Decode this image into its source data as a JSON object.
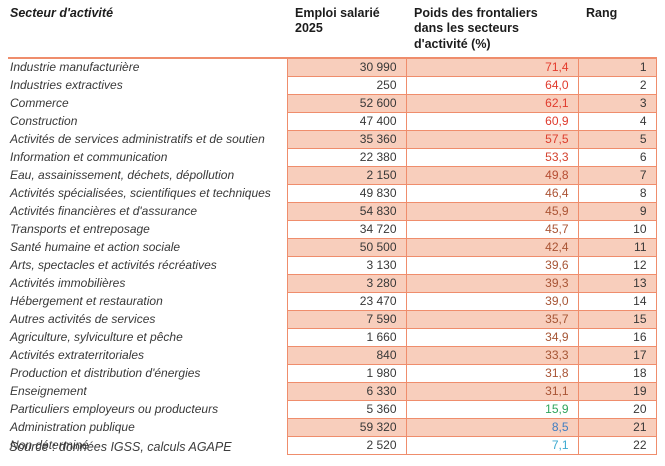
{
  "colors": {
    "cell_border": "#EF8D6C",
    "row_fill": "#F8CEBC",
    "text": "#383838",
    "weight_high": "#E0392C",
    "weight_mid": "#A75434",
    "weight_green": "#2EA45C",
    "weight_blue": "#3F7DC2",
    "weight_cyan": "#3BA9D0"
  },
  "table": {
    "headers": {
      "sector": "Secteur d'activité",
      "employment": "Emploi salarié 2025",
      "weight": "Poids des frontaliers dans les secteurs d'activité (%)",
      "rank": "Rang"
    },
    "rows": [
      {
        "sector": "Industrie manufacturière",
        "employment": "30 990",
        "weight": "71,4",
        "weight_color": "#E43B2C",
        "rank": "1"
      },
      {
        "sector": "Industries extractives",
        "employment": "250",
        "weight": "64,0",
        "weight_color": "#E03A2C",
        "rank": "2"
      },
      {
        "sector": "Commerce",
        "employment": "52 600",
        "weight": "62,1",
        "weight_color": "#E03A2C",
        "rank": "3"
      },
      {
        "sector": "Construction",
        "employment": "47 400",
        "weight": "60,9",
        "weight_color": "#DF3A2C",
        "rank": "4"
      },
      {
        "sector": "Activités de services administratifs et de soutien",
        "employment": "35 360",
        "weight": "57,5",
        "weight_color": "#DC3D2D",
        "rank": "5"
      },
      {
        "sector": "Information et communication",
        "employment": "22 380",
        "weight": "53,3",
        "weight_color": "#D4422E",
        "rank": "6"
      },
      {
        "sector": "Eau, assainissement, déchets, dépollution",
        "employment": "2 150",
        "weight": "49,8",
        "weight_color": "#B54C31",
        "rank": "7"
      },
      {
        "sector": "Activités spécialisées, scientifiques et techniques",
        "employment": "49 830",
        "weight": "46,4",
        "weight_color": "#AB5233",
        "rank": "8"
      },
      {
        "sector": "Activités financières et d'assurance",
        "employment": "54 830",
        "weight": "45,9",
        "weight_color": "#AA5333",
        "rank": "9"
      },
      {
        "sector": "Transports et entreposage",
        "employment": "34 720",
        "weight": "45,7",
        "weight_color": "#AA5333",
        "rank": "10"
      },
      {
        "sector": "Santé humaine et action sociale",
        "employment": "50 500",
        "weight": "42,4",
        "weight_color": "#A95333",
        "rank": "11"
      },
      {
        "sector": "Arts, spectacles et activités récréatives",
        "employment": "3 130",
        "weight": "39,6",
        "weight_color": "#A75434",
        "rank": "12"
      },
      {
        "sector": "Activités immobilières",
        "employment": "3 280",
        "weight": "39,3",
        "weight_color": "#A75434",
        "rank": "13"
      },
      {
        "sector": "Hébergement et restauration",
        "employment": "23 470",
        "weight": "39,0",
        "weight_color": "#A65434",
        "rank": "14"
      },
      {
        "sector": "Autres activités de services",
        "employment": "7 590",
        "weight": "35,7",
        "weight_color": "#A55534",
        "rank": "15"
      },
      {
        "sector": "Agriculture, sylviculture et pêche",
        "employment": "1 660",
        "weight": "34,9",
        "weight_color": "#A55534",
        "rank": "16"
      },
      {
        "sector": "Activités extraterritoriales",
        "employment": "840",
        "weight": "33,3",
        "weight_color": "#A55534",
        "rank": "17"
      },
      {
        "sector": "Production et distribution d'énergies",
        "employment": "1 980",
        "weight": "31,8",
        "weight_color": "#A85334",
        "rank": "18"
      },
      {
        "sector": "Enseignement",
        "employment": "6 330",
        "weight": "31,1",
        "weight_color": "#A85334",
        "rank": "19"
      },
      {
        "sector": "Particuliers employeurs ou producteurs",
        "employment": "5 360",
        "weight": "15,9",
        "weight_color": "#2EA45C",
        "rank": "20"
      },
      {
        "sector": "Administration publique",
        "employment": "59 320",
        "weight": "8,5",
        "weight_color": "#3F7DC2",
        "rank": "21"
      },
      {
        "sector": "Non déterminé",
        "employment": "2 520",
        "weight": "7,1",
        "weight_color": "#3BA9D0",
        "rank": "22"
      }
    ]
  },
  "source_note": "Source : données IGSS, calculs AGAPE"
}
